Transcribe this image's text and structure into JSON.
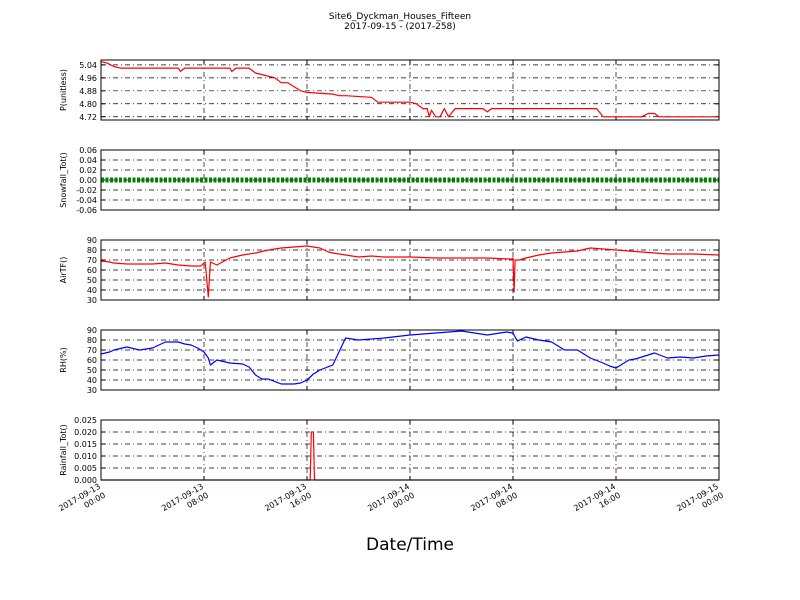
{
  "title": {
    "line1": "Site6_Dyckman_Houses_Fifteen",
    "line2": "2017-09-15 - (2017-258)"
  },
  "xlabel": "Date/Time",
  "chart_data": {
    "type": "line",
    "x_axis": {
      "range": [
        "2017-09-13 00:00",
        "2017-09-15 00:00"
      ],
      "ticks": [
        {
          "time": "2017-09-13 00:00",
          "line1": "2017-09-13",
          "line2": "00:00"
        },
        {
          "time": "2017-09-13 08:00",
          "line1": "2017-09-13",
          "line2": "08:00"
        },
        {
          "time": "2017-09-13 16:00",
          "line1": "2017-09-13",
          "line2": "16:00"
        },
        {
          "time": "2017-09-14 00:00",
          "line1": "2017-09-14",
          "line2": "00:00"
        },
        {
          "time": "2017-09-14 08:00",
          "line1": "2017-09-14",
          "line2": "08:00"
        },
        {
          "time": "2017-09-14 16:00",
          "line1": "2017-09-14",
          "line2": "16:00"
        },
        {
          "time": "2017-09-15 00:00",
          "line1": "2017-09-15",
          "line2": "00:00"
        }
      ]
    },
    "panels": [
      {
        "ylabel": "P(unitless)",
        "ylim": [
          4.7,
          5.07
        ],
        "yticks": [
          "5.04",
          "4.96",
          "4.88",
          "4.80",
          "4.72"
        ],
        "color": "#ff0000",
        "grid": true,
        "x": [
          "2017-09-13 00:00",
          "2017-09-13 00:30",
          "2017-09-13 01:00",
          "2017-09-13 01:30",
          "2017-09-13 06:00",
          "2017-09-13 06:10",
          "2017-09-13 06:30",
          "2017-09-13 10:00",
          "2017-09-13 10:10",
          "2017-09-13 10:30",
          "2017-09-13 11:30",
          "2017-09-13 12:00",
          "2017-09-13 13:30",
          "2017-09-13 14:00",
          "2017-09-13 14:20",
          "2017-09-13 14:30",
          "2017-09-13 15:30",
          "2017-09-13 16:00",
          "2017-09-13 18:00",
          "2017-09-13 18:30",
          "2017-09-13 19:00",
          "2017-09-13 21:00",
          "2017-09-13 21:30",
          "2017-09-14 00:00",
          "2017-09-14 00:30",
          "2017-09-14 01:00",
          "2017-09-14 01:20",
          "2017-09-14 01:30",
          "2017-09-14 01:40",
          "2017-09-14 02:00",
          "2017-09-14 02:20",
          "2017-09-14 02:40",
          "2017-09-14 03:00",
          "2017-09-14 03:30",
          "2017-09-14 03:50",
          "2017-09-14 05:40",
          "2017-09-14 06:00",
          "2017-09-14 06:20",
          "2017-09-14 06:30",
          "2017-09-14 12:00",
          "2017-09-14 14:30",
          "2017-09-14 15:00",
          "2017-09-14 15:10",
          "2017-09-14 16:30",
          "2017-09-14 18:00",
          "2017-09-14 18:30",
          "2017-09-14 19:00",
          "2017-09-14 19:10",
          "2017-09-14 19:20",
          "2017-09-14 20:00",
          "2017-09-14 22:00",
          "2017-09-15 00:00"
        ],
        "y": [
          5.06,
          5.05,
          5.03,
          5.02,
          5.02,
          5.0,
          5.02,
          5.02,
          5.0,
          5.02,
          5.02,
          4.99,
          4.96,
          4.93,
          4.93,
          4.93,
          4.88,
          4.87,
          4.86,
          4.85,
          4.85,
          4.84,
          4.81,
          4.81,
          4.8,
          4.77,
          4.77,
          4.72,
          4.76,
          4.72,
          4.72,
          4.77,
          4.72,
          4.77,
          4.77,
          4.77,
          4.75,
          4.77,
          4.77,
          4.77,
          4.77,
          4.72,
          4.72,
          4.72,
          4.72,
          4.74,
          4.74,
          4.73,
          4.72,
          4.72,
          4.72,
          4.72
        ]
      },
      {
        "ylabel": "Snowfall_Tot()",
        "ylim": [
          -0.06,
          0.06
        ],
        "yticks": [
          "0.06",
          "0.04",
          "0.02",
          "0.00",
          "-0.02",
          "-0.04",
          "-0.06"
        ],
        "color": "#008000",
        "grid": true,
        "marker": "dots",
        "x": [
          "2017-09-13 00:00",
          "2017-09-15 00:00"
        ],
        "y": [
          0,
          0
        ]
      },
      {
        "ylabel": "AirTF()",
        "ylim": [
          30,
          90
        ],
        "yticks": [
          "90",
          "80",
          "70",
          "60",
          "50",
          "40",
          "30"
        ],
        "color": "#ff0000",
        "grid": true,
        "x": [
          "2017-09-13 00:00",
          "2017-09-13 00:40",
          "2017-09-13 01:00",
          "2017-09-13 02:00",
          "2017-09-13 03:00",
          "2017-09-13 04:00",
          "2017-09-13 05:00",
          "2017-09-13 06:00",
          "2017-09-13 07:00",
          "2017-09-13 07:45",
          "2017-09-13 07:55",
          "2017-09-13 08:00",
          "2017-09-13 08:05",
          "2017-09-13 08:10",
          "2017-09-13 08:20",
          "2017-09-13 08:30",
          "2017-09-13 09:00",
          "2017-09-13 10:00",
          "2017-09-13 11:00",
          "2017-09-13 12:00",
          "2017-09-13 13:00",
          "2017-09-13 14:00",
          "2017-09-13 15:00",
          "2017-09-13 16:00",
          "2017-09-13 17:00",
          "2017-09-13 17:40",
          "2017-09-13 18:00",
          "2017-09-13 19:00",
          "2017-09-13 20:00",
          "2017-09-13 21:00",
          "2017-09-13 22:00",
          "2017-09-14 00:00",
          "2017-09-14 02:00",
          "2017-09-14 04:00",
          "2017-09-14 06:00",
          "2017-09-14 07:40",
          "2017-09-14 07:55",
          "2017-09-14 08:00",
          "2017-09-14 08:05",
          "2017-09-14 08:10",
          "2017-09-14 08:30",
          "2017-09-14 09:00",
          "2017-09-14 10:00",
          "2017-09-14 11:00",
          "2017-09-14 12:00",
          "2017-09-14 13:00",
          "2017-09-14 14:00",
          "2017-09-14 15:00",
          "2017-09-14 16:00",
          "2017-09-14 17:00",
          "2017-09-14 18:00",
          "2017-09-14 19:00",
          "2017-09-14 20:00",
          "2017-09-14 22:00",
          "2017-09-15 00:00"
        ],
        "y": [
          69,
          68,
          67,
          66,
          66,
          66,
          67,
          65,
          64,
          64,
          66,
          67,
          68,
          58,
          33,
          68,
          65,
          72,
          75,
          77,
          80,
          82,
          83,
          84,
          82,
          78,
          77,
          75,
          73,
          74,
          73,
          73,
          72,
          72,
          72,
          71,
          71,
          72,
          38,
          70,
          70,
          72,
          75,
          77,
          78,
          79,
          82,
          81,
          80,
          79,
          78,
          77,
          76,
          76,
          75
        ]
      },
      {
        "ylabel": "RH(%)",
        "ylim": [
          30,
          90
        ],
        "yticks": [
          "90",
          "80",
          "70",
          "60",
          "50",
          "40",
          "30"
        ],
        "color": "#0000ff",
        "grid": true,
        "x": [
          "2017-09-13 00:00",
          "2017-09-13 00:40",
          "2017-09-13 01:00",
          "2017-09-13 02:00",
          "2017-09-13 03:00",
          "2017-09-13 04:00",
          "2017-09-13 05:00",
          "2017-09-13 06:00",
          "2017-09-13 06:30",
          "2017-09-13 07:00",
          "2017-09-13 07:30",
          "2017-09-13 08:00",
          "2017-09-13 08:20",
          "2017-09-13 08:30",
          "2017-09-13 09:00",
          "2017-09-13 10:00",
          "2017-09-13 11:00",
          "2017-09-13 11:30",
          "2017-09-13 12:00",
          "2017-09-13 12:30",
          "2017-09-13 13:00",
          "2017-09-13 14:00",
          "2017-09-13 15:00",
          "2017-09-13 15:30",
          "2017-09-13 16:00",
          "2017-09-13 16:30",
          "2017-09-13 17:00",
          "2017-09-13 18:00",
          "2017-09-13 19:00",
          "2017-09-13 20:00",
          "2017-09-13 22:00",
          "2017-09-14 00:00",
          "2017-09-14 02:00",
          "2017-09-14 04:00",
          "2017-09-14 06:00",
          "2017-09-14 07:30",
          "2017-09-14 08:00",
          "2017-09-14 08:20",
          "2017-09-14 09:00",
          "2017-09-14 10:00",
          "2017-09-14 11:00",
          "2017-09-14 12:00",
          "2017-09-14 13:00",
          "2017-09-14 14:00",
          "2017-09-14 15:00",
          "2017-09-14 15:30",
          "2017-09-14 16:00",
          "2017-09-14 17:00",
          "2017-09-14 17:30",
          "2017-09-14 18:00",
          "2017-09-14 19:00",
          "2017-09-14 20:00",
          "2017-09-14 21:00",
          "2017-09-14 22:00",
          "2017-09-14 23:00",
          "2017-09-15 00:00"
        ],
        "y": [
          66,
          68,
          70,
          73,
          70,
          72,
          78,
          78,
          76,
          75,
          72,
          68,
          62,
          55,
          60,
          57,
          56,
          53,
          45,
          41,
          41,
          36,
          36,
          37,
          40,
          46,
          50,
          55,
          82,
          80,
          82,
          85,
          87,
          89,
          85,
          88,
          87,
          79,
          83,
          80,
          78,
          70,
          70,
          62,
          57,
          54,
          52,
          60,
          61,
          63,
          67,
          62,
          63,
          62,
          64,
          65
        ]
      },
      {
        "ylabel": "Rainfall_Tot()",
        "ylim": [
          0,
          0.025
        ],
        "yticks": [
          "0.025",
          "0.020",
          "0.015",
          "0.010",
          "0.005",
          "0.000"
        ],
        "color": "#ff0000",
        "grid": true,
        "x": [
          "2017-09-13 00:00",
          "2017-09-13 16:00",
          "2017-09-13 16:15",
          "2017-09-13 16:20",
          "2017-09-13 16:30",
          "2017-09-13 16:35",
          "2017-09-15 00:00"
        ],
        "y": [
          0,
          0,
          0,
          0.02,
          0.02,
          0,
          0
        ]
      }
    ]
  }
}
